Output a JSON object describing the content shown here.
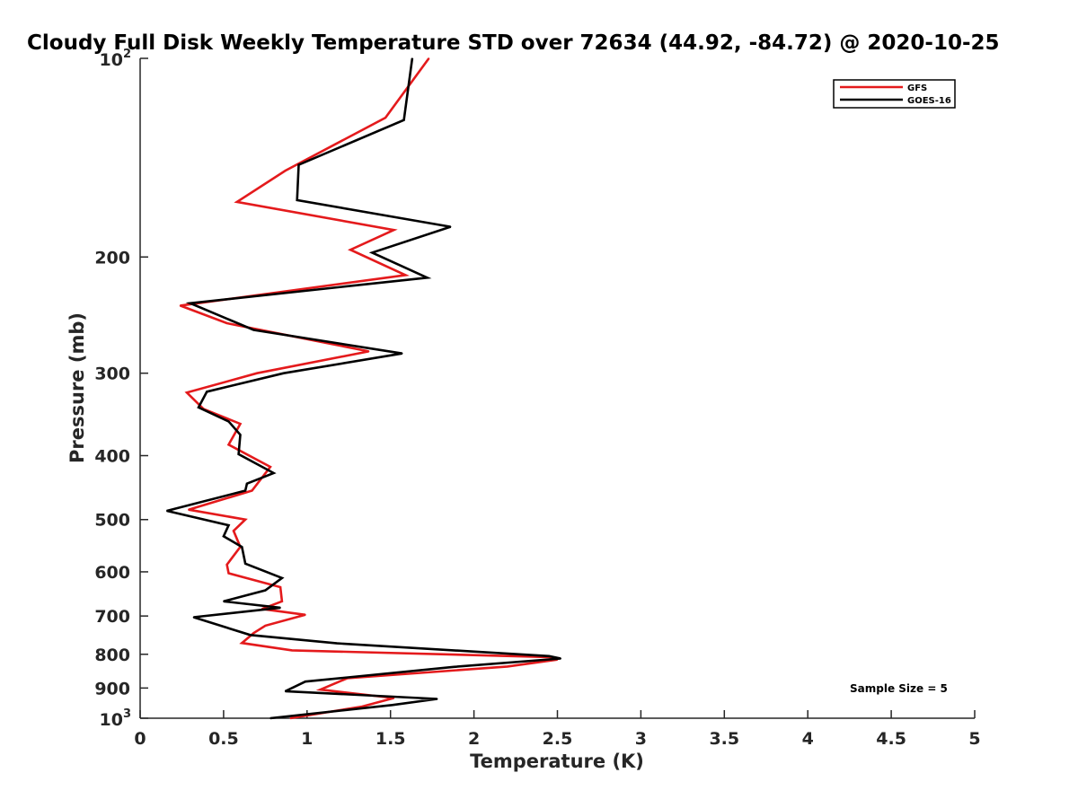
{
  "chart_data": {
    "type": "line",
    "title": "Cloudy Full Disk Weekly Temperature STD over 72634 (44.92, -84.72) @ 2020-10-25",
    "xlabel": "Temperature (K)",
    "ylabel": "Pressure (mb)",
    "xlim": [
      0,
      5
    ],
    "ylim": [
      100,
      1000
    ],
    "y_scale": "log",
    "y_reversed": true,
    "x_ticks": [
      "0",
      "0.5",
      "1",
      "1.5",
      "2",
      "2.5",
      "3",
      "3.5",
      "4",
      "4.5",
      "5"
    ],
    "y_ticks": [
      {
        "value": 100,
        "label": "10",
        "sup": "2"
      },
      {
        "value": 200,
        "label": "200"
      },
      {
        "value": 300,
        "label": "300"
      },
      {
        "value": 400,
        "label": "400"
      },
      {
        "value": 500,
        "label": "500"
      },
      {
        "value": 600,
        "label": "600"
      },
      {
        "value": 700,
        "label": "700"
      },
      {
        "value": 800,
        "label": "800"
      },
      {
        "value": 900,
        "label": "900"
      },
      {
        "value": 1000,
        "label": "10",
        "sup": "3"
      }
    ],
    "grid": false,
    "legend_position": "top-right",
    "annotation": "Sample Size = 5",
    "series": [
      {
        "name": "GFS",
        "color": "#e41a1c",
        "x": [
          1.73,
          1.47,
          0.87,
          0.58,
          1.52,
          1.26,
          1.59,
          0.24,
          0.52,
          1.37,
          0.7,
          0.28,
          0.38,
          0.6,
          0.53,
          0.78,
          0.67,
          0.29,
          0.63,
          0.56,
          0.6,
          0.52,
          0.53,
          0.84,
          0.85,
          0.73,
          0.99,
          0.75,
          0.68,
          0.61,
          0.91,
          2.45,
          2.5,
          2.2,
          1.24,
          1.08,
          1.52,
          1.33,
          0.9
        ],
        "y": [
          100,
          123,
          148,
          165,
          182,
          195,
          213,
          237,
          252,
          278,
          300,
          321,
          340,
          358,
          385,
          416,
          452,
          483,
          500,
          520,
          550,
          585,
          603,
          633,
          665,
          683,
          697,
          724,
          743,
          769,
          789,
          808,
          815,
          835,
          870,
          905,
          932,
          960,
          1000
        ]
      },
      {
        "name": "GOES-16",
        "color": "#000000",
        "x": [
          1.63,
          1.58,
          0.95,
          0.94,
          1.86,
          1.39,
          1.72,
          0.3,
          0.68,
          1.57,
          0.86,
          0.4,
          0.35,
          0.53,
          0.6,
          0.59,
          0.8,
          0.64,
          0.63,
          0.16,
          0.53,
          0.5,
          0.61,
          0.63,
          0.85,
          0.75,
          0.5,
          0.84,
          0.32,
          0.66,
          1.18,
          2.45,
          2.52,
          1.88,
          0.99,
          0.87,
          1.78,
          1.51,
          0.78
        ],
        "y": [
          100,
          124,
          145,
          164,
          180,
          197,
          215,
          235,
          258,
          280,
          300,
          320,
          338,
          355,
          372,
          398,
          425,
          441,
          452,
          485,
          510,
          530,
          550,
          583,
          613,
          640,
          665,
          680,
          703,
          748,
          770,
          805,
          812,
          836,
          880,
          910,
          935,
          955,
          1000
        ]
      }
    ]
  }
}
